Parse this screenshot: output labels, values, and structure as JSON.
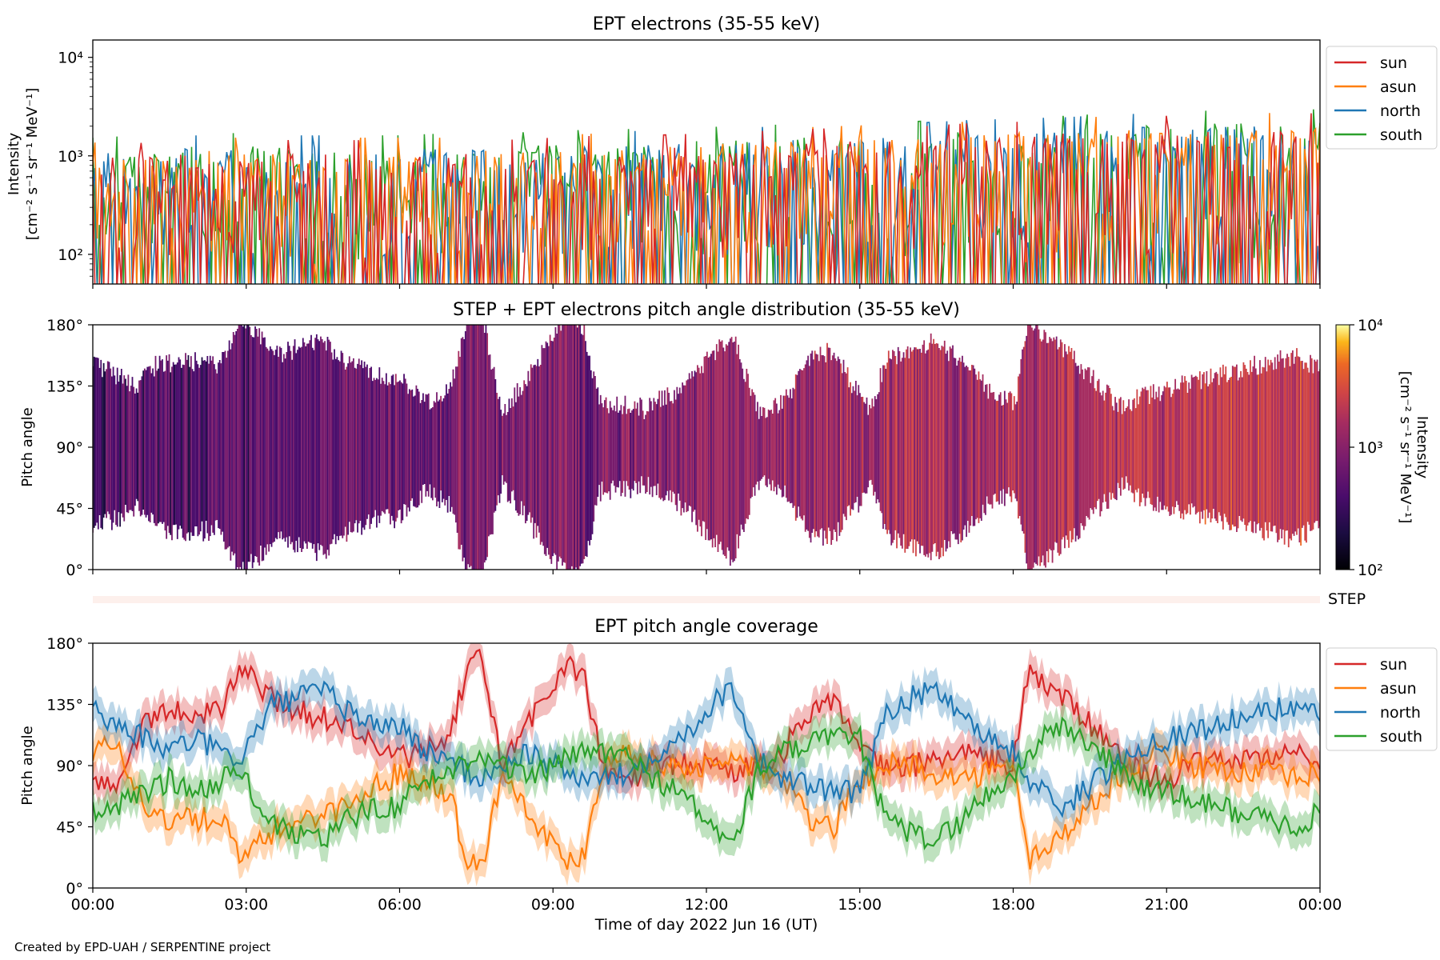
{
  "credit": "Created by EPD-UAH / SERPENTINE project",
  "chart_data": [
    {
      "type": "line",
      "title": "EPT electrons (35-55 keV)",
      "ylabel_line1": "Intensity",
      "ylabel_line2": "[cm⁻² s⁻¹ sr⁻¹ MeV⁻¹]",
      "yscale": "log",
      "ylim": [
        50,
        15000
      ],
      "yticks": [
        {
          "value": 100,
          "label": "10²"
        },
        {
          "value": 1000,
          "label": "10³"
        },
        {
          "value": 10000,
          "label": "10⁴"
        }
      ],
      "xlim_hours": [
        0,
        24
      ],
      "legend": "outside-right",
      "series": [
        {
          "name": "south",
          "color": "#2ca02c",
          "typical_upper": [
            900,
            950,
            1000,
            1000,
            1000,
            950,
            950,
            1000,
            1000,
            1050,
            1100,
            1100,
            1150,
            1200,
            1250,
            1300,
            1300,
            1400,
            1450,
            1500,
            1600,
            1650,
            1700,
            1700,
            1750
          ]
        },
        {
          "name": "north",
          "color": "#1f77b4",
          "typical_upper": [
            850,
            900,
            950,
            950,
            950,
            950,
            950,
            950,
            950,
            1000,
            1050,
            1050,
            1100,
            1150,
            1200,
            1250,
            1250,
            1350,
            1400,
            1450,
            1550,
            1600,
            1650,
            1650,
            1700
          ]
        },
        {
          "name": "asun",
          "color": "#ff7f0e",
          "typical_upper": [
            800,
            850,
            900,
            900,
            900,
            900,
            900,
            900,
            900,
            950,
            1000,
            1000,
            1050,
            1100,
            1150,
            1200,
            1200,
            1300,
            1350,
            1400,
            1500,
            1550,
            1600,
            1600,
            1650
          ]
        },
        {
          "name": "sun",
          "color": "#d62728",
          "typical_upper": [
            750,
            800,
            850,
            850,
            850,
            850,
            850,
            850,
            850,
            900,
            950,
            950,
            1000,
            1050,
            1100,
            1150,
            1150,
            1250,
            1300,
            1350,
            1450,
            1500,
            1550,
            1550,
            1600
          ]
        }
      ],
      "legend_order": [
        "sun",
        "asun",
        "north",
        "south"
      ]
    },
    {
      "type": "heatmap",
      "title": "STEP + EPT electrons pitch angle distribution (35-55 keV)",
      "ylabel": "Pitch angle",
      "ylim": [
        0,
        180
      ],
      "yticks": [
        "0°",
        "45°",
        "90°",
        "135°",
        "180°"
      ],
      "colormap": "inferno",
      "colorbar": {
        "label": "Intensity",
        "units": "[cm⁻² s⁻¹ sr⁻¹ MeV⁻¹]",
        "scale": "log",
        "range": [
          100,
          10000
        ],
        "ticks": [
          "10²",
          "10³",
          "10⁴"
        ]
      },
      "xlim_hours": [
        0,
        24
      ]
    },
    {
      "type": "line",
      "title": "",
      "step_label": "STEP",
      "xlim_hours": [
        0,
        24
      ]
    },
    {
      "type": "line",
      "title": "EPT pitch angle coverage",
      "ylabel": "Pitch angle",
      "ylim": [
        0,
        180
      ],
      "yticks": [
        "0°",
        "45°",
        "90°",
        "135°",
        "180°"
      ],
      "xlabel": "Time of day 2022 Jun 16 (UT)",
      "xticks": [
        "00:00",
        "03:00",
        "06:00",
        "09:00",
        "12:00",
        "15:00",
        "18:00",
        "21:00",
        "00:00"
      ],
      "legend": "outside-right",
      "series": [
        {
          "name": "sun",
          "color": "#d62728",
          "x_hours": [
            0,
            0.5,
            1,
            1.5,
            2,
            2.5,
            2.9,
            3.2,
            3.5,
            4,
            4.5,
            5,
            5.5,
            6,
            6.5,
            7,
            7.3,
            7.6,
            8,
            8.5,
            9,
            9.3,
            9.6,
            10,
            10.5,
            11,
            11.5,
            12,
            12.5,
            13,
            13.5,
            14,
            14.5,
            15,
            15.5,
            16,
            16.5,
            17,
            17.5,
            18,
            18.3,
            18.6,
            19,
            19.5,
            20,
            20.5,
            21,
            21.5,
            22,
            22.5,
            23,
            23.5,
            24
          ],
          "values": [
            80,
            75,
            125,
            130,
            130,
            128,
            165,
            150,
            140,
            130,
            125,
            120,
            105,
            95,
            100,
            110,
            160,
            170,
            90,
            120,
            150,
            165,
            155,
            85,
            80,
            88,
            90,
            92,
            85,
            92,
            100,
            130,
            140,
            100,
            88,
            90,
            95,
            100,
            95,
            90,
            160,
            150,
            140,
            120,
            100,
            85,
            80,
            90,
            92,
            95,
            95,
            100,
            95
          ]
        },
        {
          "name": "asun",
          "color": "#ff7f0e",
          "x_hours": [
            0,
            0.5,
            1,
            1.5,
            2,
            2.5,
            2.9,
            3.2,
            3.5,
            4,
            4.5,
            5,
            5.5,
            6,
            6.5,
            7,
            7.3,
            7.6,
            8,
            8.5,
            9,
            9.3,
            9.6,
            10,
            10.5,
            11,
            11.5,
            12,
            12.5,
            13,
            13.5,
            14,
            14.5,
            15,
            15.5,
            16,
            16.5,
            17,
            17.5,
            18,
            18.3,
            18.6,
            19,
            19.5,
            20,
            20.5,
            21,
            21.5,
            22,
            22.5,
            23,
            23.5,
            24
          ],
          "values": [
            100,
            105,
            60,
            50,
            50,
            52,
            20,
            30,
            40,
            50,
            55,
            60,
            75,
            85,
            80,
            70,
            20,
            15,
            85,
            60,
            30,
            20,
            25,
            95,
            100,
            92,
            90,
            88,
            95,
            88,
            80,
            50,
            45,
            80,
            90,
            90,
            85,
            80,
            85,
            90,
            20,
            30,
            40,
            60,
            80,
            95,
            100,
            90,
            88,
            85,
            85,
            80,
            85
          ]
        },
        {
          "name": "north",
          "color": "#1f77b4",
          "x_hours": [
            0,
            0.5,
            1,
            1.5,
            2,
            2.5,
            2.9,
            3.2,
            3.5,
            4,
            4.5,
            5,
            5.5,
            6,
            6.5,
            7,
            7.3,
            7.6,
            8,
            8.5,
            9,
            9.3,
            9.6,
            10,
            10.5,
            11,
            11.5,
            12,
            12.5,
            13,
            13.5,
            14,
            14.5,
            15,
            15.5,
            16,
            16.5,
            17,
            17.5,
            18,
            18.3,
            18.6,
            19,
            19.5,
            20,
            20.5,
            21,
            21.5,
            22,
            22.5,
            23,
            23.5,
            24
          ],
          "values": [
            130,
            120,
            110,
            100,
            110,
            100,
            95,
            115,
            135,
            140,
            145,
            130,
            120,
            120,
            100,
            95,
            85,
            80,
            90,
            100,
            90,
            85,
            80,
            80,
            85,
            100,
            110,
            130,
            150,
            95,
            80,
            75,
            70,
            70,
            130,
            140,
            145,
            130,
            110,
            100,
            80,
            70,
            60,
            75,
            90,
            105,
            110,
            115,
            120,
            125,
            130,
            135,
            125
          ]
        },
        {
          "name": "south",
          "color": "#2ca02c",
          "x_hours": [
            0,
            0.5,
            1,
            1.5,
            2,
            2.5,
            2.9,
            3.2,
            3.5,
            4,
            4.5,
            5,
            5.5,
            6,
            6.5,
            7,
            7.3,
            7.6,
            8,
            8.5,
            9,
            9.3,
            9.6,
            10,
            10.5,
            11,
            11.5,
            12,
            12.5,
            13,
            13.5,
            14,
            14.5,
            15,
            15.5,
            16,
            16.5,
            17,
            17.5,
            18,
            18.3,
            18.6,
            19,
            19.5,
            20,
            20.5,
            21,
            21.5,
            22,
            22.5,
            23,
            23.5,
            24
          ],
          "values": [
            55,
            60,
            70,
            80,
            70,
            80,
            85,
            65,
            45,
            40,
            35,
            50,
            60,
            60,
            80,
            85,
            95,
            100,
            90,
            80,
            90,
            95,
            100,
            100,
            95,
            80,
            70,
            50,
            30,
            85,
            100,
            105,
            110,
            110,
            50,
            40,
            35,
            50,
            70,
            80,
            100,
            110,
            120,
            105,
            90,
            75,
            70,
            65,
            60,
            55,
            50,
            45,
            55
          ]
        }
      ],
      "legend_order": [
        "sun",
        "asun",
        "north",
        "south"
      ]
    }
  ]
}
